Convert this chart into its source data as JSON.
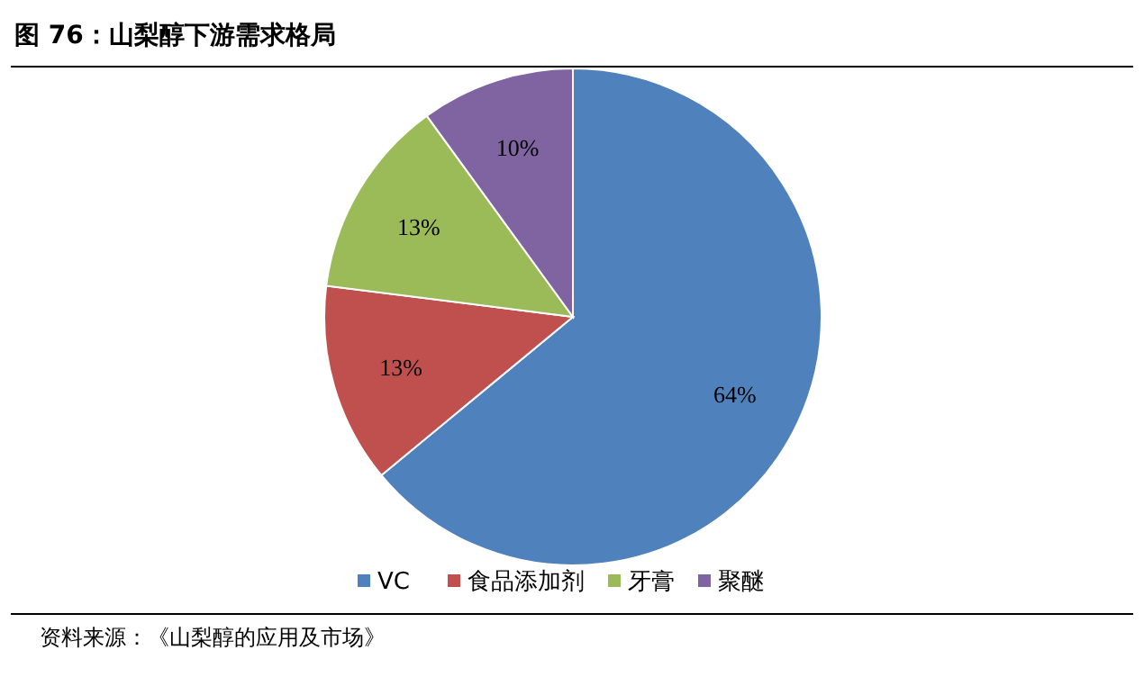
{
  "chart_data": {
    "type": "pie",
    "title": "图 76：山梨醇下游需求格局",
    "categories": [
      "VC",
      "食品添加剂",
      "牙膏",
      "聚醚"
    ],
    "values": [
      64,
      13,
      13,
      10
    ],
    "colors": [
      "#4f81bd",
      "#c0504d",
      "#9bbb59",
      "#8064a2"
    ],
    "value_labels": [
      "64%",
      "13%",
      "13%",
      "10%"
    ],
    "legend": "bottom",
    "annotations": [
      "资料来源：《山梨醇的应用及市场》"
    ]
  }
}
